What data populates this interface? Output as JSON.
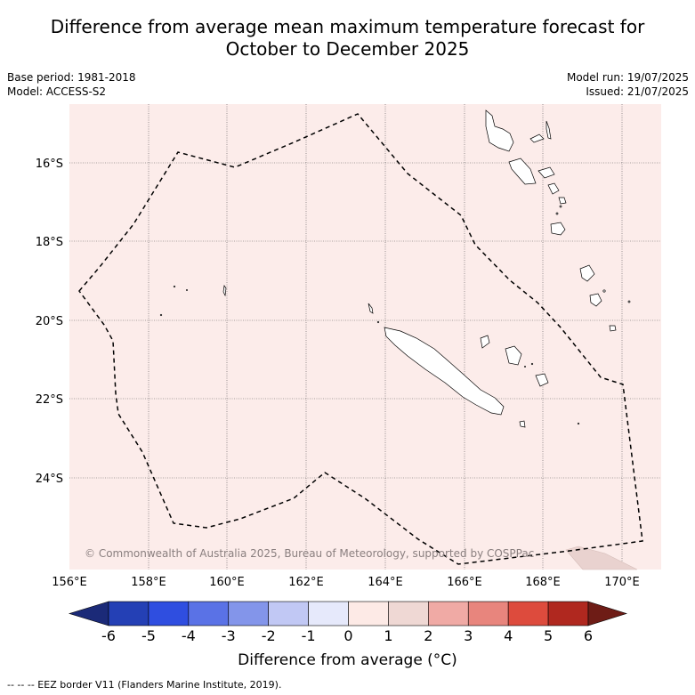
{
  "title_line1": "Difference from average mean maximum temperature forecast for",
  "title_line2": "October to December 2025",
  "base_period": "Base period: 1981-2018",
  "model": "Model: ACCESS-S2",
  "model_run": "Model run: 19/07/2025",
  "issued": "Issued: 21/07/2025",
  "copyright": "© Commonwealth of Australia 2025, Bureau of Meteorology, supported by COSPPac",
  "lat_labels": [
    "16°S",
    "18°S",
    "20°S",
    "22°S",
    "24°S"
  ],
  "lon_labels": [
    "156°E",
    "158°E",
    "160°E",
    "162°E",
    "164°E",
    "166°E",
    "168°E",
    "170°E"
  ],
  "colorbar": {
    "title": "Difference from average (°C)",
    "ticks": [
      "-6",
      "-5",
      "-4",
      "-3",
      "-2",
      "-1",
      "0",
      "1",
      "2",
      "3",
      "4",
      "5",
      "6"
    ],
    "colors": [
      "#1b2a78",
      "#2440b5",
      "#2f4ee0",
      "#5a72e6",
      "#8395ea",
      "#c1c8f4",
      "#e6e9fb",
      "#fdeae6",
      "#efd8d4",
      "#f0aaa5",
      "#e8857d",
      "#dd4b3d",
      "#b0281f",
      "#6e1c16"
    ]
  },
  "legend_footer": "--  --  -- EEZ border V11 (Flanders Marine Institute, 2019).",
  "map_fill": "#fcecea"
}
